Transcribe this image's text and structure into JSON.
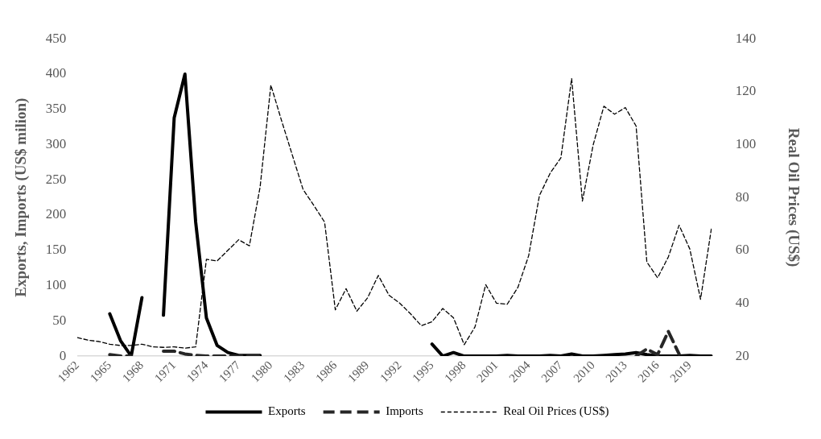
{
  "chart_data": {
    "type": "line",
    "ylabel": "Exports, Imports (US$ milion)",
    "y2label": "Real Oil Prices (US$)",
    "categories": [
      "1962",
      null,
      null,
      "1965",
      null,
      null,
      "1968",
      null,
      null,
      "1971",
      null,
      null,
      "1974",
      null,
      null,
      "1977",
      null,
      null,
      "1980",
      null,
      null,
      "1983",
      null,
      null,
      "1986",
      null,
      null,
      "1989",
      null,
      null,
      "1992",
      null,
      null,
      "1995",
      null,
      null,
      "1998",
      null,
      null,
      "2001",
      null,
      null,
      "2004",
      null,
      null,
      "2007",
      null,
      null,
      "2010",
      null,
      null,
      "2013",
      null,
      null,
      "2016",
      null,
      null,
      "2019",
      null,
      null
    ],
    "series": [
      {
        "name": "Exports",
        "color": "#000000",
        "line_style": "solid",
        "values": [
          null,
          null,
          null,
          60,
          22,
          0,
          83,
          null,
          58,
          338,
          400,
          190,
          54,
          15,
          5,
          1,
          1,
          1,
          null,
          null,
          null,
          null,
          null,
          null,
          null,
          null,
          null,
          null,
          null,
          null,
          null,
          null,
          null,
          17,
          0,
          5,
          0,
          0,
          0,
          0,
          1,
          0,
          0,
          0,
          1,
          0,
          3,
          0,
          0,
          1,
          2,
          3,
          5,
          2,
          0,
          0,
          0,
          1,
          0,
          0
        ]
      },
      {
        "name": "Imports",
        "color": "#262626",
        "line_style": "dashed",
        "values": [
          null,
          null,
          null,
          2,
          0,
          0,
          null,
          null,
          7,
          7,
          3,
          1,
          0,
          0,
          0,
          0,
          0,
          0,
          null,
          null,
          null,
          null,
          null,
          null,
          null,
          null,
          null,
          null,
          null,
          null,
          null,
          null,
          null,
          null,
          null,
          null,
          null,
          null,
          null,
          null,
          null,
          null,
          null,
          null,
          null,
          null,
          null,
          null,
          null,
          null,
          null,
          null,
          0,
          10,
          2,
          35,
          3,
          null,
          null,
          null
        ]
      },
      {
        "name": "Real Oil Prices (US$)",
        "color": "#000000",
        "line_style": "dotted",
        "axis": "y2",
        "values": [
          27,
          26,
          25.5,
          24.5,
          24,
          24,
          24.5,
          23.5,
          23.3,
          23.5,
          23,
          23.5,
          56.6,
          56,
          60,
          64,
          61.7,
          84,
          122.5,
          109,
          96,
          83,
          77,
          70.7,
          37.5,
          45.5,
          37,
          42,
          50.5,
          43,
          40,
          36,
          31.5,
          33,
          38,
          34.5,
          24.3,
          31,
          47,
          40,
          39.6,
          46,
          58,
          80.7,
          89.2,
          95,
          125,
          78.6,
          99.8,
          114.5,
          111.5,
          114,
          107,
          55.6,
          49.6,
          57.5,
          69.5,
          60.5,
          41.5,
          68
        ]
      }
    ],
    "ylim": [
      0,
      450
    ],
    "yticks": [
      0,
      50,
      100,
      150,
      200,
      250,
      300,
      350,
      400,
      450
    ],
    "y2lim": [
      20,
      140
    ],
    "y2ticks": [
      20,
      40,
      60,
      80,
      100,
      120,
      140
    ],
    "grid": false,
    "legend": "bottom",
    "marker": "none"
  }
}
